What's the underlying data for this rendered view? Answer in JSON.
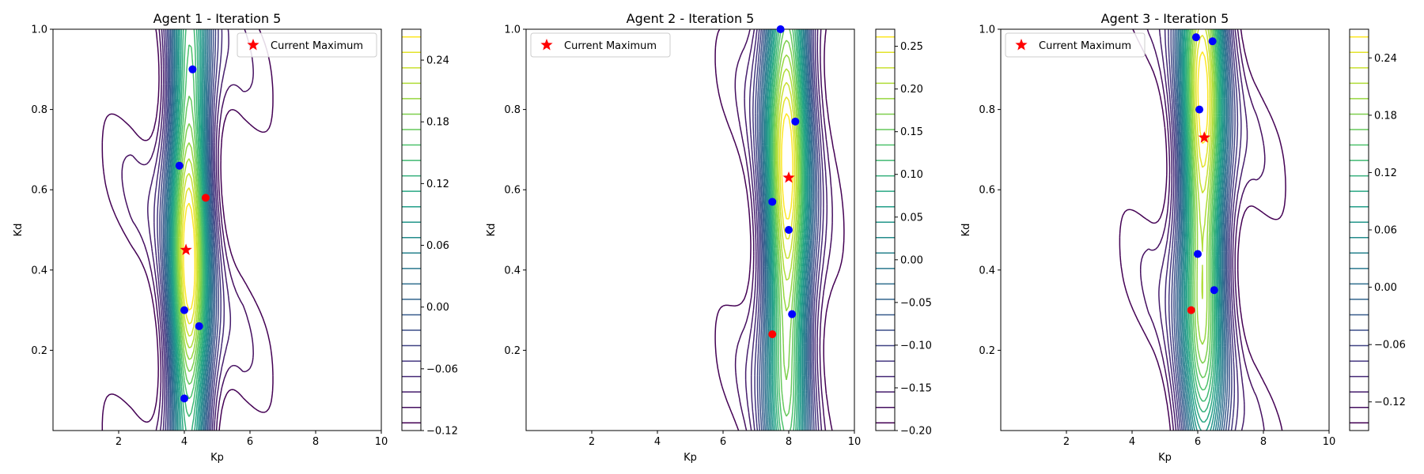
{
  "figure": {
    "background": "#ffffff"
  },
  "chart_data": [
    {
      "type": "contour",
      "title": "Agent 1 - Iteration 5",
      "xlabel": "Kp",
      "ylabel": "Kd",
      "xlim": [
        0,
        10
      ],
      "ylim": [
        0,
        1
      ],
      "xticks": [
        2,
        4,
        6,
        8,
        10
      ],
      "yticks": [
        0.2,
        0.4,
        0.6,
        0.8,
        1.0
      ],
      "xtick_labels": [
        "2",
        "4",
        "6",
        "8",
        "10"
      ],
      "ytick_labels": [
        "0.2",
        "0.4",
        "0.6",
        "0.8",
        "1.0"
      ],
      "colorbar": {
        "min": -0.12,
        "max": 0.27,
        "levels": 26,
        "ticks": [
          -0.12,
          -0.06,
          0.0,
          0.06,
          0.12,
          0.18,
          0.24
        ],
        "tick_labels": [
          "−0.12",
          "−0.06",
          "0.00",
          "0.06",
          "0.12",
          "0.18",
          "0.24"
        ]
      },
      "peak": {
        "x": 4.15,
        "y": 0.47,
        "value": 0.27
      },
      "ridge_tilt": 0.0,
      "sigma_x": 0.45,
      "sigma_y": 0.35,
      "background_level": -0.12,
      "outer_bounds": [
        1.2,
        7.0
      ],
      "blue_points": [
        [
          4.25,
          0.9
        ],
        [
          3.85,
          0.66
        ],
        [
          4.0,
          0.3
        ],
        [
          4.45,
          0.26
        ],
        [
          4.0,
          0.08
        ]
      ],
      "red_point": [
        4.65,
        0.58
      ],
      "current_maximum": [
        4.05,
        0.45
      ],
      "legend": {
        "label": "Current Maximum",
        "loc": "upper right"
      }
    },
    {
      "type": "contour",
      "title": "Agent 2 - Iteration 5",
      "xlabel": "Kp",
      "ylabel": "Kd",
      "xlim": [
        0,
        10
      ],
      "ylim": [
        0,
        1
      ],
      "xticks": [
        2,
        4,
        6,
        8,
        10
      ],
      "yticks": [
        0.2,
        0.4,
        0.6,
        0.8,
        1.0
      ],
      "xtick_labels": [
        "2",
        "4",
        "6",
        "8",
        "10"
      ],
      "ytick_labels": [
        "0.2",
        "0.4",
        "0.6",
        "0.8",
        "1.0"
      ],
      "colorbar": {
        "min": -0.2,
        "max": 0.27,
        "levels": 26,
        "ticks": [
          -0.2,
          -0.15,
          -0.1,
          -0.05,
          0.0,
          0.05,
          0.1,
          0.15,
          0.2,
          0.25
        ],
        "tick_labels": [
          "−0.20",
          "−0.15",
          "−0.10",
          "−0.05",
          "0.00",
          "0.05",
          "0.10",
          "0.15",
          "0.20",
          "0.25"
        ]
      },
      "peak": {
        "x": 7.95,
        "y": 0.6,
        "value": 0.27
      },
      "ridge_tilt": 0.0,
      "sigma_x": 0.5,
      "sigma_y": 0.4,
      "background_level": -0.2,
      "outer_bounds": [
        5.4,
        10.0
      ],
      "blue_points": [
        [
          7.75,
          1.0
        ],
        [
          8.2,
          0.77
        ],
        [
          7.5,
          0.57
        ],
        [
          8.0,
          0.5
        ],
        [
          8.1,
          0.29
        ]
      ],
      "red_point": [
        7.5,
        0.24
      ],
      "current_maximum": [
        8.0,
        0.63
      ],
      "legend": {
        "label": "Current Maximum",
        "loc": "upper left"
      }
    },
    {
      "type": "contour",
      "title": "Agent 3 - Iteration 5",
      "xlabel": "Kp",
      "ylabel": "Kd",
      "xlim": [
        0,
        10
      ],
      "ylim": [
        0,
        1
      ],
      "xticks": [
        2,
        4,
        6,
        8,
        10
      ],
      "yticks": [
        0.2,
        0.4,
        0.6,
        0.8,
        1.0
      ],
      "xtick_labels": [
        "2",
        "4",
        "6",
        "8",
        "10"
      ],
      "ytick_labels": [
        "0.2",
        "0.4",
        "0.6",
        "0.8",
        "1.0"
      ],
      "colorbar": {
        "min": -0.15,
        "max": 0.27,
        "levels": 26,
        "ticks": [
          -0.12,
          -0.06,
          0.0,
          0.06,
          0.12,
          0.18,
          0.24
        ],
        "tick_labels": [
          "−0.12",
          "−0.06",
          "0.00",
          "0.06",
          "0.12",
          "0.18",
          "0.24"
        ]
      },
      "peak": {
        "x": 6.15,
        "y": 0.7,
        "value": 0.27
      },
      "ridge_tilt": 0.0,
      "sigma_x": 0.5,
      "sigma_y": 0.4,
      "background_level": -0.15,
      "outer_bounds": [
        3.3,
        9.0
      ],
      "blue_points": [
        [
          5.95,
          0.98
        ],
        [
          6.45,
          0.97
        ],
        [
          6.05,
          0.8
        ],
        [
          6.0,
          0.44
        ],
        [
          6.5,
          0.35
        ]
      ],
      "red_point": [
        5.8,
        0.3
      ],
      "current_maximum": [
        6.2,
        0.73
      ],
      "legend": {
        "label": "Current Maximum",
        "loc": "upper left"
      }
    }
  ],
  "colors": {
    "blue_point": "#0000ff",
    "red_point": "#ff0000",
    "star": "#ff0000",
    "viridis": [
      "#440154",
      "#46327e",
      "#365c8d",
      "#277f8e",
      "#1fa187",
      "#4ac16d",
      "#a0da39",
      "#fde725"
    ]
  }
}
